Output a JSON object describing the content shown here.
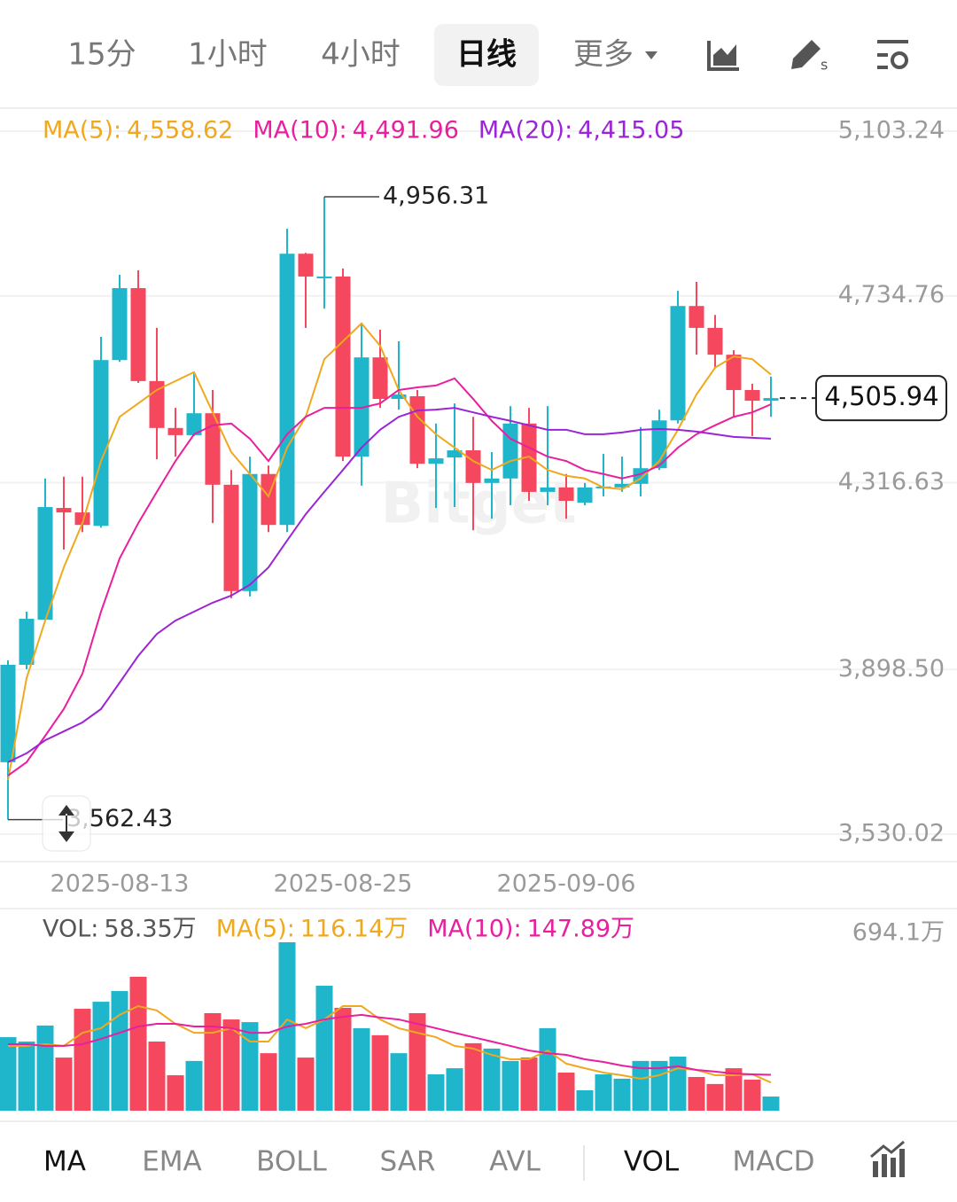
{
  "timeframe_tabs": [
    "15分",
    "1小时",
    "4小时",
    "日线",
    "更多"
  ],
  "indicator_tabs": [
    "MA",
    "EMA",
    "BOLL",
    "SAR",
    "AVL",
    "VOL",
    "MACD"
  ],
  "watermark": "Bitget",
  "chart_data": [
    {
      "type": "candlestick",
      "x": [
        null,
        null,
        null,
        null,
        null,
        null,
        "2025-08-13",
        null,
        null,
        null,
        null,
        null,
        null,
        null,
        null,
        null,
        null,
        null,
        "2025-08-25",
        null,
        null,
        null,
        null,
        null,
        null,
        null,
        null,
        null,
        null,
        null,
        "2025-09-06",
        null,
        null,
        null,
        null,
        null,
        null,
        null,
        null,
        null,
        null,
        null
      ],
      "open": [
        3691,
        3909,
        4010,
        4260,
        4250,
        4220,
        4591,
        4752,
        4544,
        4439,
        4423,
        4472,
        4312,
        4074,
        4336,
        4222,
        4829,
        4776,
        4778,
        4375,
        4597,
        4504,
        4510,
        4359,
        4373,
        4389,
        4316,
        4326,
        4449,
        4296,
        4306,
        4272,
        4304,
        4306,
        4314,
        4349,
        4456,
        4712,
        4663,
        4603,
        4524,
        4500
      ],
      "high": [
        3919,
        4028,
        4326,
        4330,
        4330,
        4643,
        4782,
        4792,
        4663,
        4484,
        4564,
        4524,
        4345,
        4375,
        4355,
        4885,
        4831,
        4956.31,
        4796,
        4673,
        4659,
        4633,
        4524,
        4449,
        4494,
        4464,
        4385,
        4488,
        4484,
        4488,
        4336,
        4316,
        4381,
        4375,
        4441,
        4480,
        4746,
        4766,
        4692,
        4613,
        4538,
        4554
      ],
      "low": [
        3562.43,
        3899,
        4010,
        4167,
        4206,
        4216,
        4587,
        4540,
        4369,
        4375,
        4421,
        4226,
        4058,
        4062,
        4206,
        4206,
        4663,
        4706,
        4365,
        4310,
        4484,
        4480,
        4349,
        4260,
        4262,
        4210,
        4236,
        4266,
        4276,
        4266,
        4236,
        4266,
        4286,
        4296,
        4286,
        4345,
        4449,
        4603,
        4574,
        4464,
        4421,
        4464
      ],
      "close": [
        3909,
        4012,
        4262,
        4250,
        4222,
        4591,
        4752,
        4544,
        4439,
        4423,
        4472,
        4312,
        4074,
        4336,
        4222,
        4829,
        4778,
        4778,
        4375,
        4597,
        4504,
        4514,
        4359,
        4371,
        4389,
        4316,
        4326,
        4449,
        4296,
        4306,
        4276,
        4306,
        4308,
        4314,
        4349,
        4456,
        4712,
        4663,
        4603,
        4524,
        4500,
        4505.94
      ],
      "up_color": "#1fb6cc",
      "down_color": "#f5475d",
      "series": [
        {
          "name": "MA(5):",
          "color": "#f0a81f",
          "values": [
            3651,
            3879,
            4008,
            4127,
            4226,
            4365,
            4464,
            4494,
            4524,
            4544,
            4564,
            4474,
            4385,
            4336,
            4286,
            4395,
            4464,
            4593,
            4633,
            4673,
            4623,
            4524,
            4464,
            4425,
            4395,
            4365,
            4345,
            4365,
            4375,
            4345,
            4332,
            4326,
            4306,
            4302,
            4326,
            4365,
            4435,
            4514,
            4574,
            4599,
            4593,
            4558.62
          ],
          "value_labels": [
            null,
            null,
            null,
            null,
            null,
            null,
            null,
            null,
            null,
            null,
            null,
            null,
            null,
            null,
            null,
            null,
            null,
            null,
            null,
            null,
            null,
            null,
            null,
            null,
            null,
            null,
            null,
            null,
            null,
            null,
            null,
            null,
            null,
            null,
            null,
            null,
            null,
            null,
            null,
            null,
            null,
            "4,558.62"
          ]
        },
        {
          "name": "MA(10):",
          "color": "#e81f9e",
          "values": [
            3661,
            3691,
            3750,
            3810,
            3889,
            4028,
            4147,
            4226,
            4296,
            4365,
            4425,
            4445,
            4449,
            4415,
            4365,
            4425,
            4464,
            4484,
            4484,
            4484,
            4494,
            4524,
            4530,
            4534,
            4550,
            4504,
            4455,
            4415,
            4395,
            4375,
            4365,
            4345,
            4336,
            4326,
            4336,
            4355,
            4395,
            4425,
            4445,
            4464,
            4474,
            4491.96
          ],
          "value_labels": [
            null,
            null,
            null,
            null,
            null,
            null,
            null,
            null,
            null,
            null,
            null,
            null,
            null,
            null,
            null,
            null,
            null,
            null,
            null,
            null,
            null,
            null,
            null,
            null,
            null,
            null,
            null,
            null,
            null,
            null,
            null,
            null,
            null,
            null,
            null,
            null,
            null,
            null,
            null,
            null,
            null,
            "4,491.96"
          ]
        },
        {
          "name": "MA(20):",
          "color": "#9b25d6",
          "values": [
            3691,
            3711,
            3740,
            3760,
            3780,
            3810,
            3869,
            3929,
            3978,
            4008,
            4028,
            4048,
            4064,
            4088,
            4127,
            4187,
            4246,
            4296,
            4345,
            4395,
            4435,
            4464,
            4478,
            4480,
            4484,
            4474,
            4464,
            4455,
            4445,
            4435,
            4435,
            4425,
            4425,
            4429,
            4435,
            4437,
            4435,
            4431,
            4425,
            4419,
            4417,
            4415.05
          ],
          "value_labels": [
            null,
            null,
            null,
            null,
            null,
            null,
            null,
            null,
            null,
            null,
            null,
            null,
            null,
            null,
            null,
            null,
            null,
            null,
            null,
            null,
            null,
            null,
            null,
            null,
            null,
            null,
            null,
            null,
            null,
            null,
            null,
            null,
            null,
            null,
            null,
            null,
            null,
            null,
            null,
            null,
            null,
            "4,415.05"
          ]
        }
      ],
      "ylim": [
        3530.02,
        5103.24
      ],
      "yticks": [
        {
          "value": 3530.02,
          "label": "3,530.02"
        },
        {
          "value": 3898.5,
          "label": "3,898.50"
        },
        {
          "value": 4316.63,
          "label": "4,316.63"
        },
        {
          "value": 4734.76,
          "label": "4,734.76"
        },
        {
          "value": 5103.24,
          "label": "5,103.24"
        }
      ],
      "grid": true,
      "annotations": [
        {
          "value": 4956.31,
          "label": "4,956.31"
        },
        {
          "value": 3562.43,
          "label": "3,562.43"
        }
      ],
      "last_price": {
        "value": 4505.94,
        "label": "4,505.94"
      }
    },
    {
      "type": "bar",
      "name": "VOL:",
      "values": [
        303,
        285,
        351,
        219,
        420,
        449,
        493,
        552,
        285,
        146,
        205,
        402,
        376,
        365,
        237,
        694.1,
        219,
        515,
        424,
        340,
        311,
        237,
        402,
        150,
        175,
        278,
        256,
        205,
        219,
        340,
        157,
        84,
        150,
        132,
        205,
        205,
        223,
        139,
        110,
        175,
        128,
        58.35
      ],
      "value_labels": [
        null,
        null,
        null,
        null,
        null,
        null,
        null,
        null,
        null,
        null,
        null,
        null,
        null,
        null,
        null,
        null,
        null,
        null,
        null,
        null,
        null,
        null,
        null,
        null,
        null,
        null,
        null,
        null,
        null,
        null,
        null,
        null,
        null,
        null,
        null,
        null,
        null,
        null,
        null,
        null,
        null,
        "58.35万"
      ],
      "series": [
        {
          "name": "MA(5):",
          "color": "#f0a81f",
          "values": [
            267,
            267,
            274,
            267,
            321,
            340,
            395,
            431,
            413,
            358,
            321,
            321,
            340,
            285,
            285,
            376,
            340,
            376,
            431,
            431,
            376,
            340,
            321,
            303,
            267,
            256,
            230,
            212,
            212,
            248,
            194,
            175,
            157,
            146,
            132,
            146,
            175,
            168,
            146,
            146,
            150,
            116.14
          ],
          "value_labels": [
            null,
            null,
            null,
            null,
            null,
            null,
            null,
            null,
            null,
            null,
            null,
            null,
            null,
            null,
            null,
            null,
            null,
            null,
            null,
            null,
            null,
            null,
            null,
            null,
            null,
            null,
            null,
            null,
            null,
            null,
            null,
            null,
            null,
            null,
            null,
            null,
            null,
            null,
            null,
            null,
            null,
            "116.14万"
          ]
        },
        {
          "name": "MA(10):",
          "color": "#e81f9e",
          "values": [
            274,
            274,
            267,
            267,
            274,
            296,
            321,
            347,
            358,
            358,
            347,
            347,
            340,
            321,
            321,
            347,
            358,
            376,
            387,
            395,
            384,
            376,
            358,
            340,
            321,
            303,
            285,
            267,
            248,
            237,
            230,
            212,
            201,
            186,
            175,
            175,
            183,
            168,
            161,
            153,
            150,
            147.89
          ],
          "value_labels": [
            null,
            null,
            null,
            null,
            null,
            null,
            null,
            null,
            null,
            null,
            null,
            null,
            null,
            null,
            null,
            null,
            null,
            null,
            null,
            null,
            null,
            null,
            null,
            null,
            null,
            null,
            null,
            null,
            null,
            null,
            null,
            null,
            null,
            null,
            null,
            null,
            null,
            null,
            null,
            null,
            null,
            "147.89万"
          ]
        }
      ],
      "ylim": [
        0,
        694.1
      ],
      "yticks": [
        {
          "value": 694.1,
          "label": "694.1万"
        }
      ]
    }
  ]
}
